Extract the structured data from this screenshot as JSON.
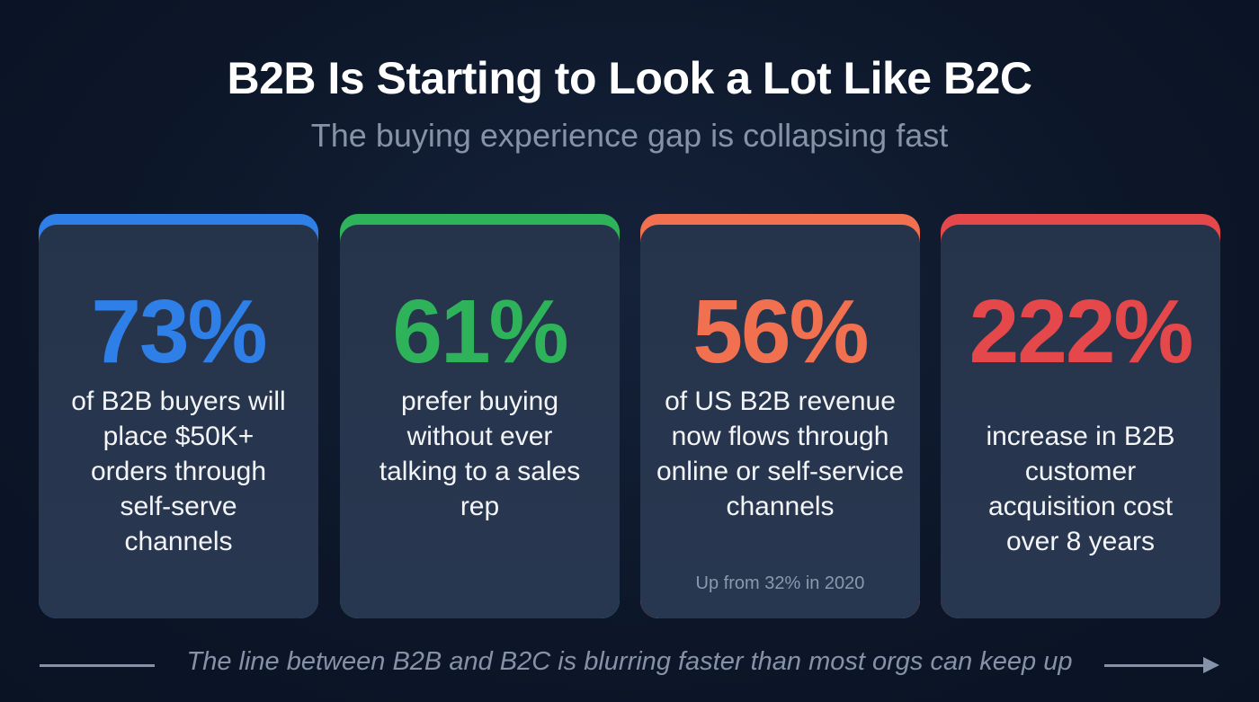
{
  "header": {
    "title": "B2B Is Starting to Look a Lot Like B2C",
    "subtitle": "The buying experience gap is collapsing fast"
  },
  "cards": [
    {
      "stat": "73%",
      "description": "of B2B buyers will place $50K+ orders through self-serve channels",
      "color": "#2f7fe9"
    },
    {
      "stat": "61%",
      "description": "prefer buying without ever talking to a sales rep",
      "color": "#2fb35a"
    },
    {
      "stat": "56%",
      "description": "of US B2B revenue now flows through online or self-service channels",
      "note": "Up from 32% in 2020",
      "color": "#f0704f"
    },
    {
      "stat": "222%",
      "description": "increase in B2B customer acquisition cost over 8 years",
      "color": "#e5484a"
    }
  ],
  "footer": {
    "tagline": "The line between B2B and B2C is blurring faster than most orgs can keep up"
  }
}
